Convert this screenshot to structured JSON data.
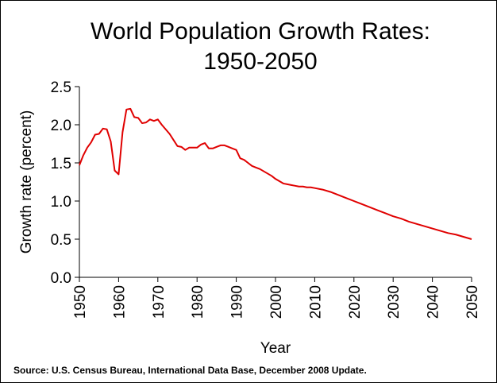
{
  "chart_data": {
    "type": "line",
    "title_line1": "World Population Growth Rates:",
    "title_line2": "1950-2050",
    "xlabel": "Year",
    "ylabel": "Growth rate (percent)",
    "source": "Source: U.S. Census Bureau, International Data Base, December 2008 Update.",
    "xlim": [
      1950,
      2050
    ],
    "ylim": [
      0,
      2.5
    ],
    "x_ticks": [
      "1950",
      "1960",
      "1970",
      "1980",
      "1990",
      "2000",
      "2010",
      "2020",
      "2030",
      "2040",
      "2050"
    ],
    "y_ticks": [
      "0.0",
      "0.5",
      "1.0",
      "1.5",
      "2.0",
      "2.5"
    ],
    "grid": false,
    "line_color": "#e00000",
    "series": [
      {
        "x": [
          1950,
          1951,
          1952,
          1953,
          1954,
          1955,
          1956,
          1957,
          1958,
          1959,
          1960,
          1961,
          1962,
          1963,
          1964,
          1965,
          1966,
          1967,
          1968,
          1969,
          1970,
          1971,
          1972,
          1973,
          1974,
          1975,
          1976,
          1977,
          1978,
          1979,
          1980,
          1981,
          1982,
          1983,
          1984,
          1985,
          1986,
          1987,
          1988,
          1989,
          1990,
          1991,
          1992,
          1993,
          1994,
          1995,
          1996,
          1997,
          1998,
          1999,
          2000,
          2001,
          2002,
          2003,
          2004,
          2005,
          2006,
          2007,
          2008,
          2009,
          2010,
          2012,
          2014,
          2016,
          2018,
          2020,
          2022,
          2024,
          2026,
          2028,
          2030,
          2032,
          2034,
          2036,
          2038,
          2040,
          2042,
          2044,
          2046,
          2048,
          2050
        ],
        "y": [
          1.47,
          1.6,
          1.7,
          1.77,
          1.87,
          1.88,
          1.95,
          1.94,
          1.78,
          1.4,
          1.35,
          1.9,
          2.2,
          2.21,
          2.1,
          2.09,
          2.02,
          2.03,
          2.07,
          2.05,
          2.07,
          2.0,
          1.94,
          1.88,
          1.8,
          1.72,
          1.71,
          1.67,
          1.7,
          1.7,
          1.7,
          1.74,
          1.76,
          1.69,
          1.69,
          1.71,
          1.73,
          1.73,
          1.71,
          1.69,
          1.67,
          1.56,
          1.54,
          1.5,
          1.46,
          1.44,
          1.42,
          1.39,
          1.36,
          1.33,
          1.29,
          1.26,
          1.23,
          1.22,
          1.21,
          1.2,
          1.19,
          1.19,
          1.18,
          1.18,
          1.17,
          1.15,
          1.12,
          1.08,
          1.04,
          1.0,
          0.96,
          0.92,
          0.88,
          0.84,
          0.8,
          0.77,
          0.73,
          0.7,
          0.67,
          0.64,
          0.61,
          0.58,
          0.56,
          0.53,
          0.5
        ]
      }
    ]
  }
}
